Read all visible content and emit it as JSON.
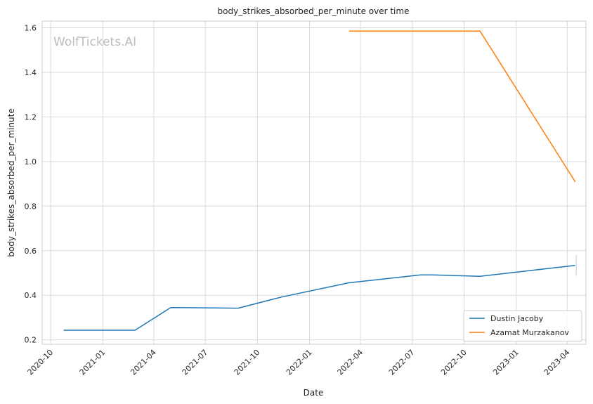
{
  "chart_data": {
    "type": "line",
    "title": "body_strikes_absorbed_per_minute over time",
    "xlabel": "Date",
    "ylabel": "body_strikes_absorbed_per_minute",
    "watermark": "WolfTickets.AI",
    "x_axis_type": "date",
    "xlim": [
      "2020-09-16",
      "2023-05-04"
    ],
    "ylim": [
      0.18,
      1.63
    ],
    "x_ticks": [
      "2020-10-01",
      "2021-01-01",
      "2021-04-01",
      "2021-07-01",
      "2021-10-01",
      "2022-01-01",
      "2022-04-01",
      "2022-07-01",
      "2022-10-01",
      "2023-01-01",
      "2023-04-01"
    ],
    "x_tick_labels": [
      "2020-10",
      "2021-01",
      "2021-04",
      "2021-07",
      "2021-10",
      "2022-01",
      "2022-04",
      "2022-07",
      "2022-10",
      "2023-01",
      "2023-04"
    ],
    "y_ticks": [
      0.2,
      0.4,
      0.6,
      0.8,
      1.0,
      1.2,
      1.4,
      1.6
    ],
    "y_tick_labels": [
      "0.2",
      "0.4",
      "0.6",
      "0.8",
      "1.0",
      "1.2",
      "1.4",
      "1.6"
    ],
    "grid": true,
    "legend_position": "lower right",
    "series": [
      {
        "name": "Dustin Jacoby",
        "color": "#1f77b4",
        "points": [
          {
            "x": "2020-10-24",
            "y": 0.243
          },
          {
            "x": "2021-02-27",
            "y": 0.243
          },
          {
            "x": "2021-05-01",
            "y": 0.345
          },
          {
            "x": "2021-08-28",
            "y": 0.342
          },
          {
            "x": "2021-11-13",
            "y": 0.392
          },
          {
            "x": "2022-03-12",
            "y": 0.456
          },
          {
            "x": "2022-07-16",
            "y": 0.491
          },
          {
            "x": "2022-08-06",
            "y": 0.491
          },
          {
            "x": "2022-10-29",
            "y": 0.485
          },
          {
            "x": "2023-04-15",
            "y": 0.534
          }
        ]
      },
      {
        "name": "Azamat Murzakanov",
        "color": "#ff7f0e",
        "points": [
          {
            "x": "2022-03-12",
            "y": 1.585
          },
          {
            "x": "2022-10-29",
            "y": 1.585
          },
          {
            "x": "2023-04-15",
            "y": 0.909
          }
        ]
      }
    ]
  }
}
